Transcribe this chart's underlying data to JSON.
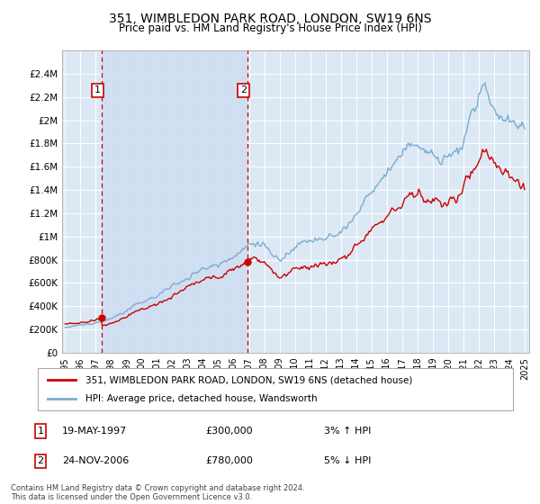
{
  "title": "351, WIMBLEDON PARK ROAD, LONDON, SW19 6NS",
  "subtitle": "Price paid vs. HM Land Registry's House Price Index (HPI)",
  "legend_line1": "351, WIMBLEDON PARK ROAD, LONDON, SW19 6NS (detached house)",
  "legend_line2": "HPI: Average price, detached house, Wandsworth",
  "transaction1_label": "1",
  "transaction1_date": "19-MAY-1997",
  "transaction1_price": "£300,000",
  "transaction1_hpi": "3% ↑ HPI",
  "transaction1_year": 1997.37,
  "transaction1_value": 300000,
  "transaction2_label": "2",
  "transaction2_date": "24-NOV-2006",
  "transaction2_price": "£780,000",
  "transaction2_hpi": "5% ↓ HPI",
  "transaction2_year": 2006.9,
  "transaction2_value": 780000,
  "footer": "Contains HM Land Registry data © Crown copyright and database right 2024.\nThis data is licensed under the Open Government Licence v3.0.",
  "price_line_color": "#cc0000",
  "hpi_line_color": "#7aadcf",
  "fill_color": "#d8e8f5",
  "background_color": "#dce9f5",
  "plot_bg_color": "#dce9f5",
  "vline_color": "#cc0000",
  "ylim": [
    0,
    2600000
  ],
  "xlim_start": 1994.8,
  "xlim_end": 2025.3,
  "yticks": [
    0,
    200000,
    400000,
    600000,
    800000,
    1000000,
    1200000,
    1400000,
    1600000,
    1800000,
    2000000,
    2200000,
    2400000
  ],
  "ytick_labels": [
    "£0",
    "£200K",
    "£400K",
    "£600K",
    "£800K",
    "£1M",
    "£1.2M",
    "£1.4M",
    "£1.6M",
    "£1.8M",
    "£2M",
    "£2.2M",
    "£2.4M"
  ],
  "xticks": [
    1995,
    1996,
    1997,
    1998,
    1999,
    2000,
    2001,
    2002,
    2003,
    2004,
    2005,
    2006,
    2007,
    2008,
    2009,
    2010,
    2011,
    2012,
    2013,
    2014,
    2015,
    2016,
    2017,
    2018,
    2019,
    2020,
    2021,
    2022,
    2023,
    2024,
    2025
  ]
}
